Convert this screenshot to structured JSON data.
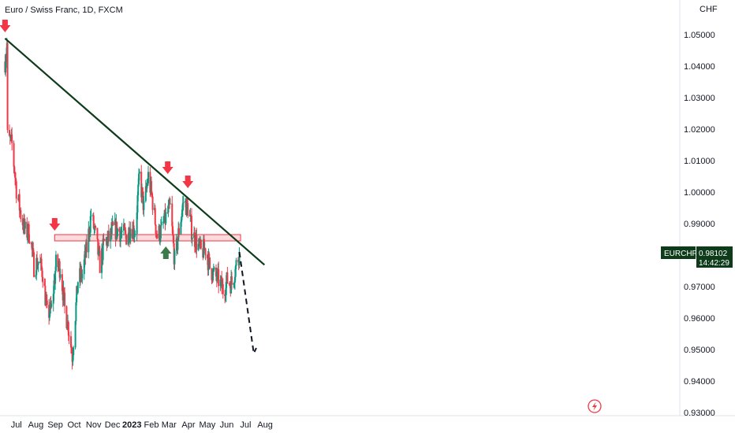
{
  "header": {
    "symbol_title": "Euro / Swiss Franc, 1D, FXCM",
    "currency": "CHF"
  },
  "price_tag": {
    "symbol": "EURCHF",
    "price": "0.98102",
    "countdown": "14:42:29"
  },
  "colors": {
    "up": "#089981",
    "down": "#f23645",
    "trendline": "#0e3b1a",
    "zone_fill": "rgba(242,54,69,0.18)",
    "zone_stroke": "#f23645",
    "tag_bg": "#0e3b1a",
    "arrow_down": "#f23645",
    "arrow_up": "#3b7a4b",
    "grid": "#f0f3fa"
  },
  "icons": {
    "lightning": "lightning-icon"
  },
  "chart_data": {
    "type": "candlestick",
    "title": "Euro / Swiss Franc, 1D, FXCM",
    "ylabel": "CHF",
    "ylim": [
      0.93,
      1.055
    ],
    "y_ticks": [
      "1.05000",
      "1.04000",
      "1.03000",
      "1.02000",
      "1.01000",
      "1.00000",
      "0.99000",
      "0.98000",
      "0.97000",
      "0.96000",
      "0.95000",
      "0.94000",
      "0.93000"
    ],
    "x_ticks": [
      "Jul",
      "Aug",
      "Sep",
      "Oct",
      "Nov",
      "Dec",
      "2023",
      "Feb",
      "Mar",
      "Apr",
      "May",
      "Jun",
      "Jul",
      "Aug"
    ],
    "x_range": [
      "2022-06-10",
      "2023-08-18"
    ],
    "grid": false,
    "closes": [
      {
        "date": "2022-06-13",
        "close": 1.0415
      },
      {
        "date": "2022-06-16",
        "close": 1.047
      },
      {
        "date": "2022-06-17",
        "close": 1.0175
      },
      {
        "date": "2022-06-24",
        "close": 1.015
      },
      {
        "date": "2022-07-01",
        "close": 1.001
      },
      {
        "date": "2022-07-08",
        "close": 0.993
      },
      {
        "date": "2022-07-15",
        "close": 0.9875
      },
      {
        "date": "2022-07-22",
        "close": 0.987
      },
      {
        "date": "2022-07-29",
        "close": 0.9765
      },
      {
        "date": "2022-08-05",
        "close": 0.978
      },
      {
        "date": "2022-08-12",
        "close": 0.9745
      },
      {
        "date": "2022-08-19",
        "close": 0.961
      },
      {
        "date": "2022-08-26",
        "close": 0.963
      },
      {
        "date": "2022-09-02",
        "close": 0.977
      },
      {
        "date": "2022-09-09",
        "close": 0.976
      },
      {
        "date": "2022-09-16",
        "close": 0.963
      },
      {
        "date": "2022-09-23",
        "close": 0.956
      },
      {
        "date": "2022-09-28",
        "close": 0.948
      },
      {
        "date": "2022-10-07",
        "close": 0.972
      },
      {
        "date": "2022-10-14",
        "close": 0.974
      },
      {
        "date": "2022-10-21",
        "close": 0.982
      },
      {
        "date": "2022-10-28",
        "close": 0.993
      },
      {
        "date": "2022-11-04",
        "close": 0.986
      },
      {
        "date": "2022-11-11",
        "close": 0.977
      },
      {
        "date": "2022-11-18",
        "close": 0.984
      },
      {
        "date": "2022-11-25",
        "close": 0.985
      },
      {
        "date": "2022-12-02",
        "close": 0.988
      },
      {
        "date": "2022-12-09",
        "close": 0.988
      },
      {
        "date": "2022-12-16",
        "close": 0.987
      },
      {
        "date": "2022-12-23",
        "close": 0.986
      },
      {
        "date": "2022-12-30",
        "close": 0.989
      },
      {
        "date": "2023-01-06",
        "close": 0.988
      },
      {
        "date": "2023-01-13",
        "close": 1.005
      },
      {
        "date": "2023-01-20",
        "close": 0.995
      },
      {
        "date": "2023-01-27",
        "close": 1.005
      },
      {
        "date": "2023-02-03",
        "close": 0.997
      },
      {
        "date": "2023-02-10",
        "close": 0.986
      },
      {
        "date": "2023-02-17",
        "close": 0.988
      },
      {
        "date": "2023-02-24",
        "close": 0.992
      },
      {
        "date": "2023-03-03",
        "close": 0.995
      },
      {
        "date": "2023-03-10",
        "close": 0.978
      },
      {
        "date": "2023-03-17",
        "close": 0.988
      },
      {
        "date": "2023-03-24",
        "close": 0.997
      },
      {
        "date": "2023-03-31",
        "close": 0.995
      },
      {
        "date": "2023-04-07",
        "close": 0.987
      },
      {
        "date": "2023-04-14",
        "close": 0.984
      },
      {
        "date": "2023-04-21",
        "close": 0.981
      },
      {
        "date": "2023-04-28",
        "close": 0.982
      },
      {
        "date": "2023-05-05",
        "close": 0.976
      },
      {
        "date": "2023-05-12",
        "close": 0.9735
      },
      {
        "date": "2023-05-19",
        "close": 0.972
      },
      {
        "date": "2023-05-26",
        "close": 0.969
      },
      {
        "date": "2023-06-02",
        "close": 0.972
      },
      {
        "date": "2023-06-09",
        "close": 0.971
      },
      {
        "date": "2023-06-16",
        "close": 0.977
      },
      {
        "date": "2023-06-21",
        "close": 0.981
      }
    ],
    "annotations": {
      "trendline": {
        "from": {
          "date": "2022-06-13",
          "price": 1.0488
        },
        "to": {
          "date": "2023-07-31",
          "price": 0.9769
        }
      },
      "resistance_zone": {
        "x0": "2022-08-31",
        "x1": "2023-06-23",
        "y0": 0.9845,
        "y1": 0.9865
      },
      "projection": [
        {
          "date": "2023-06-21",
          "price": 0.981
        },
        {
          "date": "2023-07-14",
          "price": 0.9488
        },
        {
          "date": "2023-07-18",
          "price": 0.9505
        }
      ],
      "arrows_down": [
        {
          "date": "2022-06-13",
          "price": 1.0525
        },
        {
          "date": "2022-08-31",
          "price": 0.9895
        },
        {
          "date": "2023-02-27",
          "price": 1.0075
        },
        {
          "date": "2023-03-31",
          "price": 1.003
        }
      ],
      "arrows_up": [
        {
          "date": "2023-02-24",
          "price": 0.981
        }
      ]
    }
  }
}
